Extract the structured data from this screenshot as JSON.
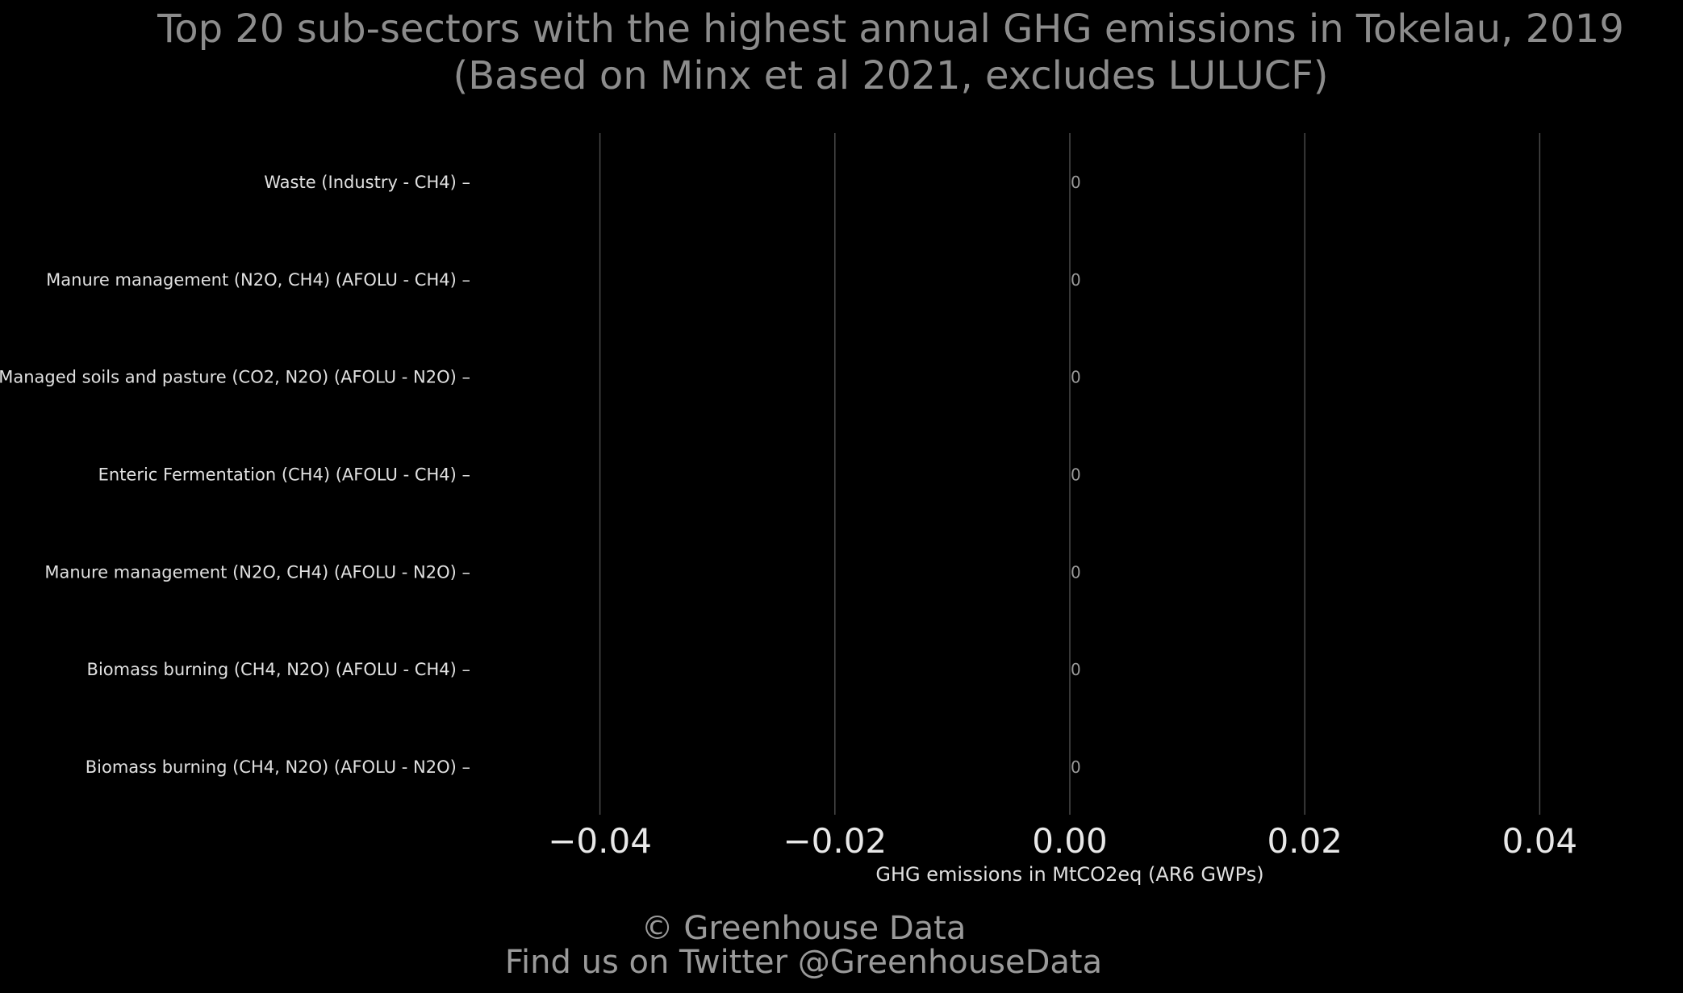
{
  "chart_data": {
    "type": "bar",
    "orientation": "horizontal",
    "title": "Top 20 sub-sectors with the highest annual GHG emissions in Tokelau, 2019",
    "subtitle": "(Based on Minx et al 2021, excludes LULUCF)",
    "xlabel": "GHG emissions in MtCO2eq (AR6 GWPs)",
    "ylabel": "",
    "xlim": [
      -0.05,
      0.05
    ],
    "x_ticks": [
      -0.04,
      -0.02,
      0.0,
      0.02,
      0.04
    ],
    "x_tick_labels": [
      "−0.04",
      "−0.02",
      "0.00",
      "0.02",
      "0.04"
    ],
    "grid": "vertical",
    "categories": [
      "Waste (Industry - CH4)",
      "Manure management (N2O, CH4) (AFOLU - CH4)",
      "Managed soils and pasture (CO2, N2O) (AFOLU - N2O)",
      "Enteric Fermentation (CH4) (AFOLU - CH4)",
      "Manure management (N2O, CH4) (AFOLU - N2O)",
      "Biomass burning (CH4, N2O) (AFOLU - CH4)",
      "Biomass burning (CH4, N2O) (AFOLU - N2O)"
    ],
    "values": [
      0,
      0,
      0,
      0,
      0,
      0,
      0
    ],
    "value_labels": [
      "0",
      "0",
      "0",
      "0",
      "0",
      "0",
      "0"
    ]
  },
  "footer": {
    "copyright": "© Greenhouse Data",
    "twitter": "Find us on Twitter @GreenhouseData"
  },
  "colors": {
    "background": "#000000",
    "title": "#8c8c8c",
    "text": "#e0e0e0",
    "grid": "#4a4a4a",
    "bar": "#4a7fb0"
  }
}
